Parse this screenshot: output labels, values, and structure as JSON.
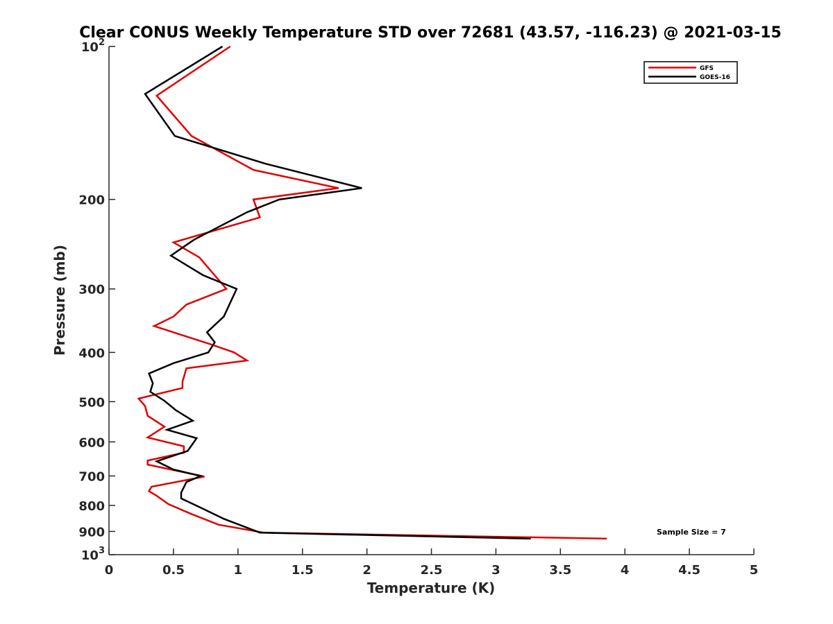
{
  "chart_data": {
    "type": "line",
    "title": "Clear CONUS Weekly Temperature STD over 72681 (43.57, -116.23) @ 2021-03-15",
    "xlabel": "Temperature (K)",
    "ylabel": "Pressure (mb)",
    "xlim": [
      0,
      5
    ],
    "ylim": [
      100,
      1000
    ],
    "yscale": "log",
    "y_reversed": true,
    "xticks": [
      0,
      0.5,
      1,
      1.5,
      2,
      2.5,
      3,
      3.5,
      4,
      4.5,
      5
    ],
    "xtick_labels": [
      "0",
      "0.5",
      "1",
      "1.5",
      "2",
      "2.5",
      "3",
      "3.5",
      "4",
      "4.5",
      "5"
    ],
    "yticks": [
      100,
      200,
      300,
      400,
      500,
      600,
      700,
      800,
      900,
      1000
    ],
    "ytick_labels": [
      {
        "base": "10",
        "exp": "2"
      },
      {
        "base": "200",
        "exp": ""
      },
      {
        "base": "300",
        "exp": ""
      },
      {
        "base": "400",
        "exp": ""
      },
      {
        "base": "500",
        "exp": ""
      },
      {
        "base": "600",
        "exp": ""
      },
      {
        "base": "700",
        "exp": ""
      },
      {
        "base": "800",
        "exp": ""
      },
      {
        "base": "900",
        "exp": ""
      },
      {
        "base": "10",
        "exp": "3"
      }
    ],
    "grid": false,
    "legend_position": "top-right",
    "annotation": "Sample Size = 7",
    "series": [
      {
        "name": "GFS",
        "color": "#e00000",
        "x": [
          0.94,
          0.37,
          0.64,
          1.12,
          1.78,
          1.12,
          1.17,
          0.5,
          0.7,
          0.91,
          0.6,
          0.5,
          0.35,
          0.78,
          0.97,
          1.07,
          0.6,
          0.57,
          0.57,
          0.23,
          0.28,
          0.3,
          0.43,
          0.3,
          0.58,
          0.58,
          0.3,
          0.3,
          0.74,
          0.33,
          0.31,
          0.37,
          0.46,
          0.63,
          0.85,
          1.2,
          3.86
        ],
        "y": [
          100,
          125,
          150,
          175,
          190,
          200,
          217,
          243,
          260,
          300,
          322,
          340,
          355,
          385,
          400,
          415,
          430,
          457,
          470,
          493,
          510,
          533,
          560,
          588,
          612,
          630,
          653,
          665,
          702,
          735,
          750,
          766,
          795,
          830,
          873,
          905,
          930
        ]
      },
      {
        "name": "GOES-16",
        "color": "#000000",
        "x": [
          0.88,
          0.28,
          0.51,
          1.21,
          1.96,
          1.32,
          1.07,
          0.66,
          0.48,
          0.73,
          0.99,
          0.89,
          0.76,
          0.82,
          0.77,
          0.5,
          0.31,
          0.34,
          0.32,
          0.43,
          0.52,
          0.65,
          0.45,
          0.68,
          0.61,
          0.37,
          0.5,
          0.71,
          0.6,
          0.56,
          0.56,
          0.7,
          0.89,
          1.17,
          3.27
        ],
        "y": [
          100,
          124,
          150,
          170,
          190,
          200,
          212,
          240,
          258,
          282,
          300,
          340,
          365,
          382,
          400,
          420,
          440,
          460,
          478,
          498,
          520,
          545,
          568,
          590,
          625,
          655,
          680,
          700,
          720,
          755,
          775,
          806,
          850,
          905,
          930
        ]
      }
    ]
  }
}
